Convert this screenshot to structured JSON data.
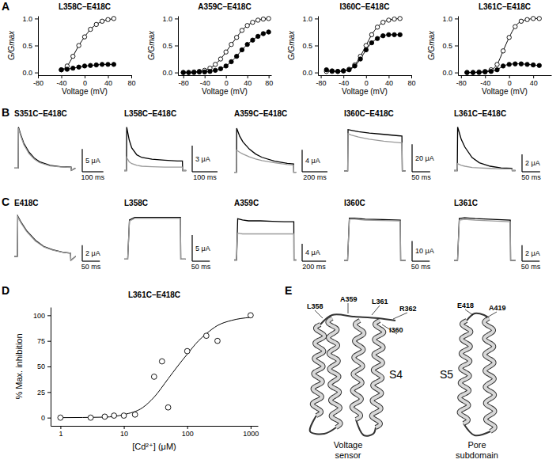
{
  "chart_data": [
    {
      "type": "scatter",
      "panel_label": "A",
      "title": "L358C–E418C",
      "xlabel": "Voltage (mV)",
      "ylabel": "G/Gmax",
      "x": [
        -40,
        -30,
        -20,
        -10,
        0,
        10,
        20,
        30,
        40,
        50
      ],
      "xlim": [
        -80,
        80
      ],
      "xticks": [
        -80,
        -40,
        0,
        40,
        80
      ],
      "ylim": [
        -0.05,
        1.05
      ],
      "yticks": [
        {
          "value": 0,
          "label": "0.0"
        },
        {
          "value": 0.5,
          "label": "0.5"
        },
        {
          "value": 1,
          "label": "1.0"
        }
      ],
      "series": [
        {
          "color": "#000000",
          "marker": "open-circle",
          "line_style": "solid",
          "values": [
            0.05,
            0.12,
            0.3,
            0.5,
            0.66,
            0.8,
            0.89,
            0.95,
            0.98,
            1.0
          ]
        },
        {
          "color": "#000000",
          "marker": "filled-circle",
          "line_style": "solid",
          "values": [
            0.05,
            0.06,
            0.08,
            0.1,
            0.12,
            0.13,
            0.14,
            0.15,
            0.15,
            0.15
          ]
        }
      ]
    },
    {
      "type": "scatter",
      "title": "A359C–E418C",
      "xlabel": "Voltage (mV)",
      "ylabel": "G/Gmax",
      "x": [
        -80,
        -70,
        -60,
        -50,
        -40,
        -30,
        -20,
        -10,
        0,
        10,
        20,
        30,
        40,
        50,
        60,
        70,
        80
      ],
      "xlim": [
        -90,
        85
      ],
      "xticks": [
        -80,
        -40,
        0,
        40,
        80
      ],
      "ylim": [
        -0.05,
        1.05
      ],
      "yticks": [
        {
          "value": 0,
          "label": "0.0"
        },
        {
          "value": 0.5,
          "label": "0.5"
        },
        {
          "value": 1,
          "label": "1.0"
        }
      ],
      "series": [
        {
          "color": "#000000",
          "marker": "open-circle",
          "line_style": "solid",
          "values": [
            0,
            0,
            0.01,
            0.02,
            0.04,
            0.08,
            0.15,
            0.25,
            0.38,
            0.52,
            0.65,
            0.78,
            0.87,
            0.93,
            0.97,
            0.99,
            1.0
          ]
        },
        {
          "color": "#000000",
          "marker": "filled-circle",
          "line_style": "solid",
          "values": [
            0,
            0,
            0,
            0.01,
            0.01,
            0.02,
            0.04,
            0.07,
            0.12,
            0.2,
            0.3,
            0.42,
            0.52,
            0.6,
            0.67,
            0.72,
            0.75
          ]
        }
      ]
    },
    {
      "type": "scatter",
      "title": "I360C–E418C",
      "xlabel": "Voltage (mV)",
      "ylabel": "G/Gmax",
      "x": [
        -70,
        -60,
        -50,
        -40,
        -30,
        -20,
        -10,
        0,
        10,
        20,
        30,
        40,
        50,
        60
      ],
      "xlim": [
        -85,
        80
      ],
      "xticks": [
        -80,
        -40,
        0,
        40,
        80
      ],
      "ylim": [
        -0.05,
        1.05
      ],
      "yticks": [
        {
          "value": 0,
          "label": "0.0"
        },
        {
          "value": 0.5,
          "label": "0.5"
        },
        {
          "value": 1,
          "label": "1.0"
        }
      ],
      "series": [
        {
          "color": "#000000",
          "marker": "open-circle",
          "line_style": "solid",
          "values": [
            0.02,
            0.02,
            0.02,
            0.03,
            0.06,
            0.14,
            0.3,
            0.5,
            0.7,
            0.84,
            0.93,
            0.97,
            0.99,
            1.0
          ]
        },
        {
          "color": "#000000",
          "marker": "filled-circle",
          "line_style": "solid",
          "values": [
            0.05,
            0.03,
            0.02,
            0.03,
            0.05,
            0.12,
            0.25,
            0.42,
            0.55,
            0.63,
            0.68,
            0.7,
            0.7,
            0.7
          ]
        }
      ]
    },
    {
      "type": "scatter",
      "title": "L361C–E418C",
      "xlabel": "Voltage (mV)",
      "ylabel": "G/Gmax",
      "x": [
        -70,
        -60,
        -50,
        -40,
        -30,
        -20,
        -10,
        0,
        10,
        20,
        30,
        40,
        50
      ],
      "xlim": [
        -85,
        70
      ],
      "xticks": [
        -80,
        -40,
        0,
        40
      ],
      "ylim": [
        -0.05,
        1.05
      ],
      "yticks": [
        {
          "value": 0,
          "label": "0.0"
        },
        {
          "value": 0.5,
          "label": "0.5"
        },
        {
          "value": 1,
          "label": "1.0"
        }
      ],
      "series": [
        {
          "color": "#000000",
          "marker": "open-circle",
          "line_style": "solid",
          "values": [
            0,
            0,
            0.01,
            0.02,
            0.05,
            0.15,
            0.4,
            0.65,
            0.85,
            0.95,
            0.98,
            1.0,
            1.0
          ]
        },
        {
          "color": "#000000",
          "marker": "filled-circle",
          "line_style": "solid",
          "values": [
            0,
            0,
            0,
            0.01,
            0.02,
            0.05,
            0.12,
            0.15,
            0.16,
            0.16,
            0.15,
            0.14,
            0.13
          ]
        }
      ]
    },
    {
      "type": "line",
      "panel_label": "B",
      "title": "S351C–E418C",
      "tick_labels": false,
      "x": [
        -20,
        -1,
        0,
        10,
        25,
        50,
        75,
        100,
        150,
        200,
        250,
        251,
        270
      ],
      "xlim": [
        -20,
        280
      ],
      "ylim": [
        -1.5,
        10
      ],
      "scale_bar": {
        "x": 100,
        "x_label": "100 ms",
        "y": 5,
        "y_label": "5 μA"
      },
      "series": [
        {
          "color": "#000000",
          "line_style": "solid",
          "values": [
            0,
            0,
            9,
            7.5,
            5.5,
            3.5,
            2.2,
            1.4,
            0.6,
            0.3,
            0.2,
            -0.5,
            0
          ]
        },
        {
          "color": "#9a9a9a",
          "line_style": "solid",
          "values": [
            0,
            0,
            8.8,
            7.2,
            5.2,
            3.2,
            2,
            1.2,
            0.5,
            0.25,
            0.15,
            -0.5,
            0
          ]
        }
      ]
    },
    {
      "type": "line",
      "title": "L358C–E418C",
      "tick_labels": false,
      "x": [
        -10,
        -1,
        0,
        10,
        20,
        40,
        60,
        100,
        150,
        200,
        220,
        221,
        235
      ],
      "xlim": [
        -10,
        240
      ],
      "ylim": [
        -0.5,
        5.5
      ],
      "scale_bar": {
        "x": 100,
        "x_label": "100 ms",
        "y": 3,
        "y_label": "3 μA"
      },
      "series": [
        {
          "color": "#000000",
          "line_style": "solid",
          "values": [
            0,
            0,
            5,
            3.5,
            2.6,
            1.8,
            1.5,
            1.3,
            1.2,
            1.1,
            1.1,
            0,
            0
          ]
        },
        {
          "color": "#9a9a9a",
          "line_style": "solid",
          "values": [
            0,
            0,
            1.5,
            1.0,
            0.8,
            0.6,
            0.5,
            0.45,
            0.4,
            0.4,
            0.4,
            0,
            0
          ]
        }
      ]
    },
    {
      "type": "line",
      "title": "A359C–E418C",
      "tick_labels": false,
      "x": [
        -20,
        -1,
        0,
        25,
        50,
        100,
        150,
        200,
        300,
        400,
        450,
        451,
        470
      ],
      "xlim": [
        -20,
        480
      ],
      "ylim": [
        -0.5,
        9
      ],
      "scale_bar": {
        "x": 200,
        "x_label": "200 ms",
        "y": 4,
        "y_label": "4 μA"
      },
      "series": [
        {
          "color": "#000000",
          "line_style": "solid",
          "values": [
            0,
            0,
            8,
            6.5,
            5.5,
            4.2,
            3.3,
            2.7,
            2,
            1.6,
            1.5,
            0,
            0
          ]
        },
        {
          "color": "#9a9a9a",
          "line_style": "solid",
          "values": [
            0,
            0,
            4,
            3.6,
            3.3,
            2.8,
            2.4,
            2.1,
            1.7,
            1.4,
            1.3,
            0,
            0
          ]
        }
      ]
    },
    {
      "type": "line",
      "title": "I360C–E418C",
      "tick_labels": false,
      "x": [
        -10,
        -1,
        0,
        1,
        10,
        30,
        60,
        100,
        140,
        150,
        151,
        160
      ],
      "xlim": [
        -10,
        165
      ],
      "ylim": [
        -3,
        35
      ],
      "scale_bar": {
        "x": 50,
        "x_label": "50 ms",
        "y": 20,
        "y_label": "20 μA"
      },
      "series": [
        {
          "color": "#000000",
          "line_style": "solid",
          "values": [
            0,
            0,
            0,
            30,
            29.5,
            28.5,
            27.5,
            26.5,
            25.5,
            25.3,
            0,
            0
          ]
        },
        {
          "color": "#9a9a9a",
          "line_style": "solid",
          "values": [
            0,
            0,
            0,
            27,
            26,
            24.5,
            23,
            21.5,
            20.5,
            20.3,
            0,
            0
          ]
        }
      ]
    },
    {
      "type": "line",
      "title": "L361C–E418C",
      "tick_labels": false,
      "x": [
        -10,
        -1,
        0,
        10,
        20,
        40,
        60,
        90,
        120,
        150,
        151,
        160
      ],
      "xlim": [
        -10,
        165
      ],
      "ylim": [
        -0.5,
        5.5
      ],
      "scale_bar": {
        "x": 50,
        "x_label": "50 ms",
        "y": 2,
        "y_label": "2 μA"
      },
      "series": [
        {
          "color": "#000000",
          "line_style": "solid",
          "values": [
            0,
            0,
            5,
            3.6,
            2.7,
            1.5,
            0.9,
            0.5,
            0.3,
            0.25,
            0,
            0
          ]
        },
        {
          "color": "#9a9a9a",
          "line_style": "solid",
          "values": [
            0,
            0,
            0.8,
            0.6,
            0.5,
            0.35,
            0.3,
            0.25,
            0.2,
            0.2,
            0,
            0
          ]
        }
      ]
    },
    {
      "type": "line",
      "panel_label": "C",
      "title": "E418C",
      "tick_labels": false,
      "x": [
        -10,
        -1,
        0,
        10,
        25,
        50,
        75,
        100,
        130,
        150,
        151,
        165
      ],
      "xlim": [
        -10,
        170
      ],
      "ylim": [
        -1,
        5.5
      ],
      "scale_bar": {
        "x": 50,
        "x_label": "50 ms",
        "y": 2,
        "y_label": "2 μA"
      },
      "series": [
        {
          "color": "#000000",
          "line_style": "solid",
          "values": [
            0,
            0,
            5,
            4.2,
            3.2,
            2,
            1.2,
            0.8,
            0.5,
            0.4,
            -0.5,
            0
          ]
        },
        {
          "color": "#9a9a9a",
          "line_style": "solid",
          "values": [
            0,
            0,
            4.9,
            4.1,
            3.1,
            1.9,
            1.15,
            0.75,
            0.5,
            0.4,
            -0.5,
            0
          ]
        }
      ]
    },
    {
      "type": "line",
      "title": "L358C",
      "tick_labels": false,
      "x": [
        -10,
        -1,
        0,
        5,
        20,
        50,
        100,
        150,
        151,
        165
      ],
      "xlim": [
        -10,
        170
      ],
      "ylim": [
        -1,
        9
      ],
      "scale_bar": {
        "x": 50,
        "x_label": "50 ms",
        "y": 5,
        "y_label": "5 μA"
      },
      "series": [
        {
          "color": "#000000",
          "line_style": "solid",
          "values": [
            0,
            0,
            0,
            7.5,
            8,
            8,
            8,
            8,
            0,
            0
          ]
        },
        {
          "color": "#9a9a9a",
          "line_style": "solid",
          "values": [
            0,
            0,
            0,
            7.3,
            7.8,
            7.8,
            7.8,
            7.8,
            0,
            0
          ]
        }
      ]
    },
    {
      "type": "line",
      "title": "A359C",
      "tick_labels": false,
      "x": [
        -20,
        -1,
        0,
        10,
        50,
        100,
        200,
        300,
        400,
        480,
        481,
        500
      ],
      "xlim": [
        -20,
        510
      ],
      "ylim": [
        -1,
        11
      ],
      "scale_bar": {
        "x": 200,
        "x_label": "200 ms",
        "y": 4,
        "y_label": "4 μA"
      },
      "series": [
        {
          "color": "#000000",
          "line_style": "solid",
          "values": [
            0,
            0,
            0,
            9.5,
            9.2,
            9,
            9,
            8.9,
            8.8,
            8.8,
            0,
            0
          ]
        },
        {
          "color": "#9a9a9a",
          "line_style": "solid",
          "values": [
            0,
            0,
            0,
            6.2,
            6,
            6,
            6,
            6,
            6,
            6,
            0,
            0
          ]
        }
      ]
    },
    {
      "type": "line",
      "title": "I360C",
      "tick_labels": false,
      "x": [
        -10,
        -1,
        0,
        5,
        20,
        50,
        100,
        150,
        151,
        165
      ],
      "xlim": [
        -10,
        170
      ],
      "ylim": [
        -2,
        24
      ],
      "scale_bar": {
        "x": 50,
        "x_label": "50 ms",
        "y": 10,
        "y_label": "10 μA"
      },
      "series": [
        {
          "color": "#000000",
          "line_style": "solid",
          "values": [
            0,
            0,
            0,
            21,
            21,
            20.5,
            20.3,
            20,
            0,
            0
          ]
        },
        {
          "color": "#9a9a9a",
          "line_style": "solid",
          "values": [
            0,
            0,
            0,
            20.5,
            20.5,
            20,
            19.8,
            19.6,
            0,
            0
          ]
        }
      ]
    },
    {
      "type": "line",
      "title": "L361C",
      "tick_labels": false,
      "x": [
        -10,
        -1,
        0,
        5,
        20,
        50,
        100,
        150,
        151,
        165
      ],
      "xlim": [
        -10,
        170
      ],
      "ylim": [
        -0.5,
        6
      ],
      "scale_bar": {
        "x": 50,
        "x_label": "50 ms",
        "y": 2,
        "y_label": "2 μA"
      },
      "series": [
        {
          "color": "#000000",
          "line_style": "solid",
          "values": [
            0,
            0,
            0,
            5.2,
            5.3,
            5.2,
            5.1,
            5.0,
            0,
            0
          ]
        },
        {
          "color": "#9a9a9a",
          "line_style": "solid",
          "values": [
            0,
            0,
            0,
            5.0,
            5.1,
            5.0,
            4.9,
            4.8,
            0,
            0
          ]
        }
      ]
    },
    {
      "type": "scatter",
      "panel_label": "D",
      "title": "L361C–E418C",
      "xlabel": "[Cd²⁺] (μM)",
      "ylabel": "% Max. inhibition",
      "log": "x",
      "xlim": [
        0.7,
        1300
      ],
      "xticks": [
        1,
        10,
        100,
        1000
      ],
      "ylim": [
        -8,
        108
      ],
      "yticks": [
        0,
        25,
        50,
        75,
        100
      ],
      "series": [
        {
          "color": "#000000",
          "marker": "open-circle",
          "line_style": "none",
          "x": [
            1,
            3,
            5,
            7,
            10,
            15,
            30,
            40,
            50,
            100,
            200,
            300,
            1000
          ],
          "values": [
            0,
            0,
            1,
            2,
            2,
            3,
            40,
            55,
            10,
            65,
            80,
            75,
            100
          ]
        },
        {
          "color": "#000000",
          "marker": "none",
          "line_style": "solid",
          "x": [
            1,
            5,
            10,
            20,
            30,
            50,
            70,
            100,
            150,
            200,
            300,
            500,
            1000
          ],
          "values": [
            0,
            0.5,
            3,
            10,
            20,
            38,
            50,
            62,
            75,
            82,
            90,
            95,
            98
          ]
        }
      ]
    }
  ],
  "panel_e": {
    "panel_label": "E",
    "residues": [
      "L358",
      "A359",
      "L361",
      "R362",
      "I360"
    ],
    "helix_s4": "S4",
    "voltage_sensor": [
      "Voltage",
      "sensor"
    ],
    "pore_residues": [
      "E418",
      "A419"
    ],
    "helix_s5": "S5",
    "pore_subdomain": [
      "Pore",
      "subdomain"
    ]
  }
}
